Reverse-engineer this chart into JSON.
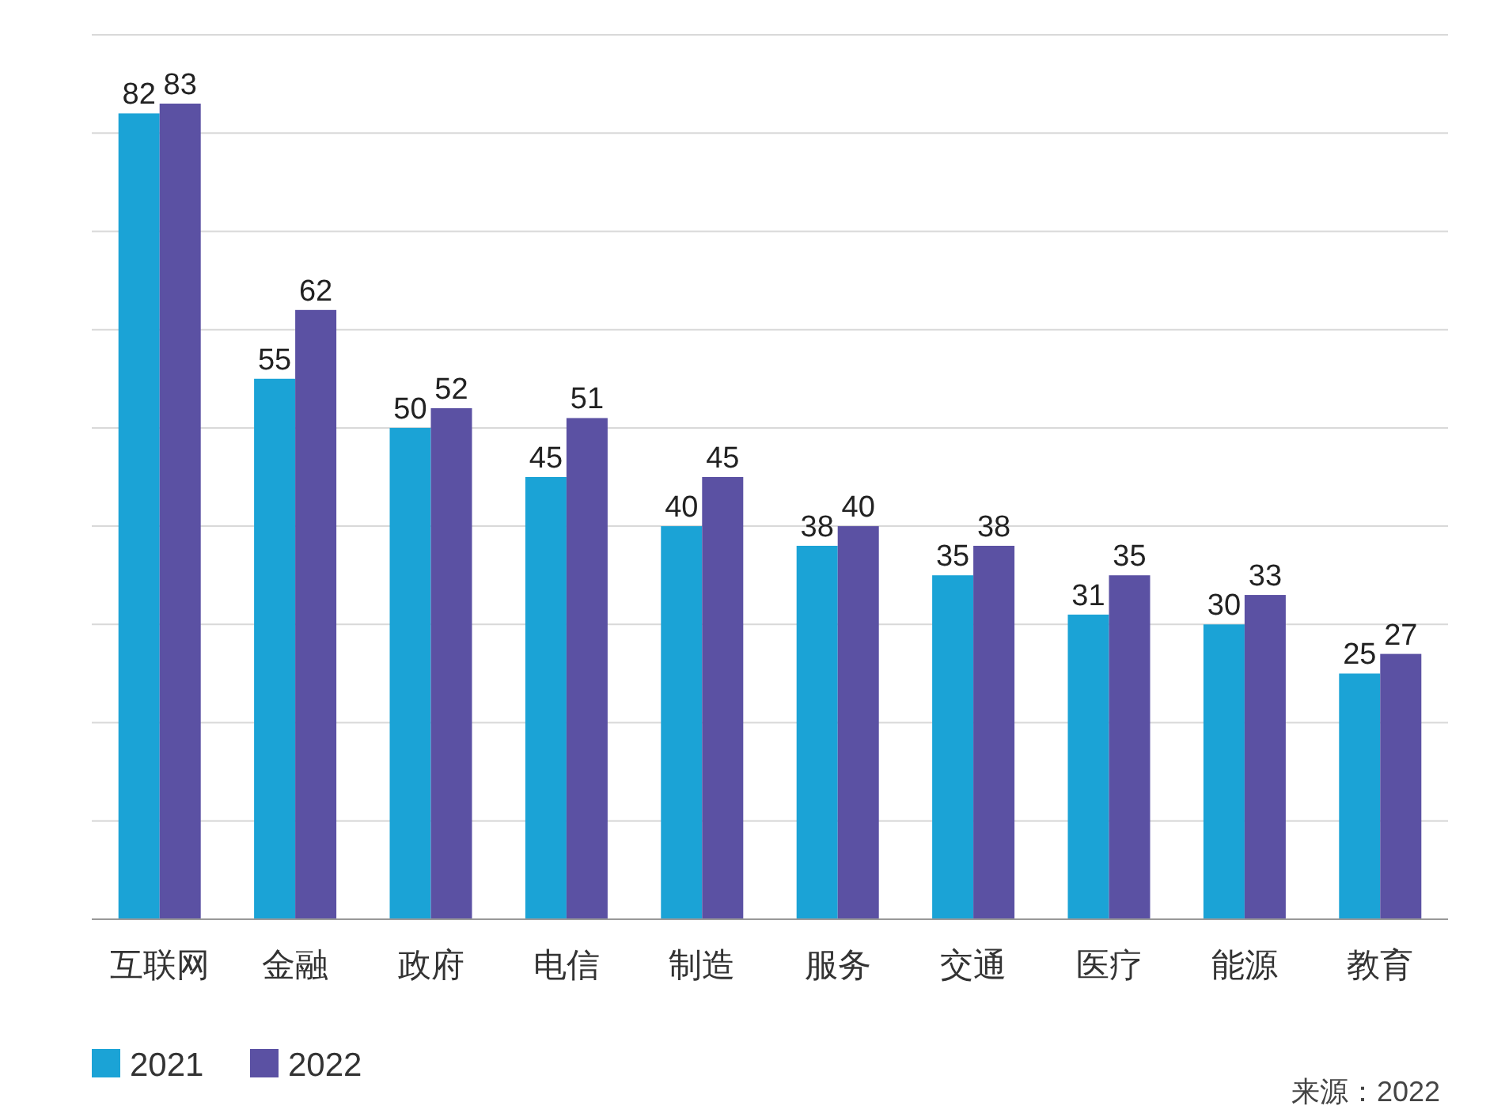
{
  "chart_data": {
    "type": "bar",
    "categories": [
      "互联网",
      "金融",
      "政府",
      "电信",
      "制造",
      "服务",
      "交通",
      "医疗",
      "能源",
      "教育"
    ],
    "series": [
      {
        "name": "2021",
        "color": "#1ba3d6",
        "values": [
          82,
          55,
          50,
          45,
          40,
          38,
          35,
          31,
          30,
          25
        ]
      },
      {
        "name": "2022",
        "color": "#5b51a3",
        "values": [
          83,
          62,
          52,
          51,
          45,
          40,
          38,
          35,
          33,
          27
        ]
      }
    ],
    "ylim": [
      0,
      90
    ],
    "yticks": [
      {
        "value": 0,
        "label": null
      },
      {
        "value": 10,
        "label": null
      },
      {
        "value": 20,
        "label": null
      },
      {
        "value": 30,
        "label": null
      },
      {
        "value": 40,
        "label": null
      },
      {
        "value": 50,
        "label": null
      },
      {
        "value": 60,
        "label": null
      },
      {
        "value": 70,
        "label": null
      },
      {
        "value": 80,
        "label": null
      },
      {
        "value": 90,
        "label": null
      }
    ],
    "tick_labels": "x",
    "grid": "y",
    "data_labels": true,
    "legend": "bottom left",
    "annotations": [
      "来源：2022"
    ]
  }
}
